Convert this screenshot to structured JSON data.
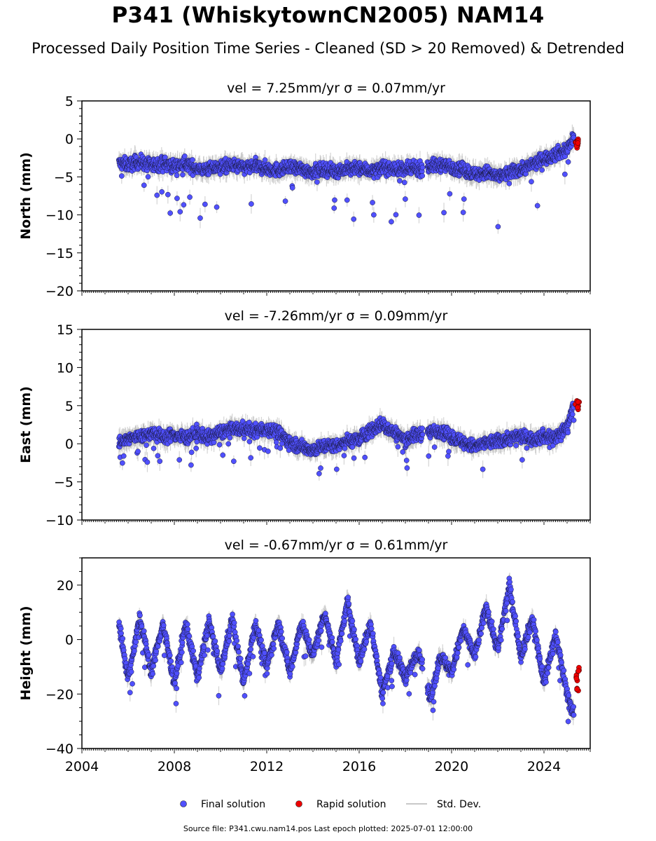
{
  "header": {
    "title": "P341 (WhiskytownCN2005) NAM14",
    "subtitle": "Processed Daily Position Time Series - Cleaned (SD > 20 Removed) & Detrended"
  },
  "legend": {
    "final": "Final solution",
    "rapid": "Rapid solution",
    "std": "Std. Dev."
  },
  "footer": {
    "text": "Source file: P341.cwu.nam14.pos  Last epoch plotted: 2025-07-01 12:00:00"
  },
  "colors": {
    "final": "#5050ff",
    "rapid": "#ee0000",
    "std": "#b0b0b0"
  },
  "chart_data": [
    {
      "type": "scatter",
      "panel": "north",
      "title": "vel = 7.25mm/yr   σ = 0.07mm/yr",
      "ylabel": "North (mm)",
      "xlim": [
        2004.0,
        2026.0
      ],
      "ylim": [
        -20,
        5
      ],
      "yticks": [
        -20,
        -15,
        -10,
        -5,
        0,
        5
      ],
      "xticks": [
        2004,
        2008,
        2012,
        2016,
        2020,
        2024
      ],
      "series": [
        {
          "name": "Final solution",
          "x": [
            2005.6,
            2006.0,
            2006.5,
            2007.0,
            2007.5,
            2008.0,
            2008.5,
            2009.0,
            2009.5,
            2010.0,
            2010.5,
            2011.0,
            2011.5,
            2012.0,
            2012.5,
            2013.0,
            2013.5,
            2014.0,
            2014.5,
            2015.0,
            2015.5,
            2016.0,
            2016.5,
            2017.0,
            2017.5,
            2018.0,
            2018.6,
            2019.1,
            2019.5,
            2020.0,
            2020.5,
            2021.0,
            2021.5,
            2022.0,
            2022.5,
            2023.0,
            2023.5,
            2024.0,
            2024.5,
            2025.0,
            2025.3
          ],
          "y": [
            -3.2,
            -3.4,
            -3.0,
            -3.5,
            -3.2,
            -3.6,
            -3.3,
            -3.9,
            -4.0,
            -3.7,
            -3.5,
            -3.8,
            -3.6,
            -3.9,
            -4.1,
            -3.8,
            -4.0,
            -4.3,
            -4.0,
            -4.2,
            -4.0,
            -3.9,
            -4.2,
            -3.8,
            -3.9,
            -4.1,
            -3.9,
            -3.6,
            -3.4,
            -3.7,
            -4.0,
            -4.7,
            -4.4,
            -5.0,
            -4.5,
            -4.0,
            -3.4,
            -2.6,
            -2.0,
            -1.4,
            0.4
          ]
        },
        {
          "name": "Rapid solution",
          "x": [
            2025.4,
            2025.45,
            2025.5
          ],
          "y": [
            -0.5,
            -0.9,
            -0.3
          ]
        }
      ]
    },
    {
      "type": "scatter",
      "panel": "east",
      "title": "vel = -7.26mm/yr   σ = 0.09mm/yr",
      "ylabel": "East (mm)",
      "xlim": [
        2004.0,
        2026.0
      ],
      "ylim": [
        -10,
        15
      ],
      "yticks": [
        -10,
        -5,
        0,
        5,
        10,
        15
      ],
      "xticks": [
        2004,
        2008,
        2012,
        2016,
        2020,
        2024
      ],
      "series": [
        {
          "name": "Final solution",
          "x": [
            2005.6,
            2006.0,
            2006.5,
            2007.0,
            2007.5,
            2008.0,
            2008.5,
            2009.0,
            2009.5,
            2010.0,
            2010.5,
            2011.0,
            2011.5,
            2012.0,
            2012.5,
            2013.0,
            2013.5,
            2014.0,
            2014.5,
            2015.0,
            2015.5,
            2016.0,
            2016.5,
            2017.0,
            2017.5,
            2018.0,
            2018.6,
            2019.1,
            2019.5,
            2020.0,
            2020.5,
            2021.0,
            2021.5,
            2022.0,
            2022.5,
            2023.0,
            2023.5,
            2024.0,
            2024.5,
            2025.0,
            2025.3
          ],
          "y": [
            0.0,
            0.6,
            1.0,
            1.4,
            0.9,
            1.2,
            0.8,
            1.4,
            0.8,
            1.6,
            1.8,
            2.0,
            1.7,
            2.0,
            1.5,
            0.2,
            -0.4,
            -0.8,
            -0.3,
            -0.2,
            0.4,
            0.6,
            1.8,
            2.6,
            1.5,
            0.6,
            1.3,
            1.5,
            1.8,
            0.9,
            0.2,
            -0.4,
            0.1,
            0.3,
            0.7,
            1.0,
            0.6,
            1.0,
            0.8,
            2.2,
            5.4
          ]
        },
        {
          "name": "Rapid solution",
          "x": [
            2025.4,
            2025.45,
            2025.5
          ],
          "y": [
            5.2,
            4.6,
            5.6
          ]
        }
      ]
    },
    {
      "type": "scatter",
      "panel": "height",
      "title": "vel = -0.67mm/yr   σ = 0.61mm/yr",
      "ylabel": "Height (mm)",
      "xlim": [
        2004.0,
        2026.0
      ],
      "ylim": [
        -40,
        30
      ],
      "yticks": [
        -40,
        -20,
        0,
        20
      ],
      "xticks": [
        2004,
        2008,
        2012,
        2016,
        2020,
        2024
      ],
      "series": [
        {
          "name": "Final solution",
          "x": [
            2005.6,
            2006.0,
            2006.5,
            2007.0,
            2007.5,
            2008.0,
            2008.5,
            2009.0,
            2009.5,
            2010.0,
            2010.5,
            2011.0,
            2011.5,
            2012.0,
            2012.5,
            2013.0,
            2013.5,
            2014.0,
            2014.5,
            2015.0,
            2015.5,
            2016.0,
            2016.5,
            2017.0,
            2017.5,
            2018.0,
            2018.6,
            2019.1,
            2019.5,
            2020.0,
            2020.5,
            2021.0,
            2021.5,
            2022.0,
            2022.5,
            2023.0,
            2023.5,
            2024.0,
            2024.5,
            2025.0,
            2025.3
          ],
          "y": [
            6,
            -14,
            8,
            -12,
            6,
            -16,
            6,
            -14,
            7,
            -12,
            8,
            -16,
            6,
            -10,
            6,
            -12,
            6,
            -6,
            10,
            -8,
            14,
            -8,
            6,
            -20,
            -4,
            -14,
            -4,
            -22,
            -6,
            -12,
            4,
            -6,
            12,
            -4,
            20,
            -6,
            8,
            -16,
            2,
            -20,
            -28
          ]
        },
        {
          "name": "Rapid solution",
          "x": [
            2025.4,
            2025.45,
            2025.5
          ],
          "y": [
            -14,
            -18,
            -11
          ]
        }
      ]
    }
  ]
}
